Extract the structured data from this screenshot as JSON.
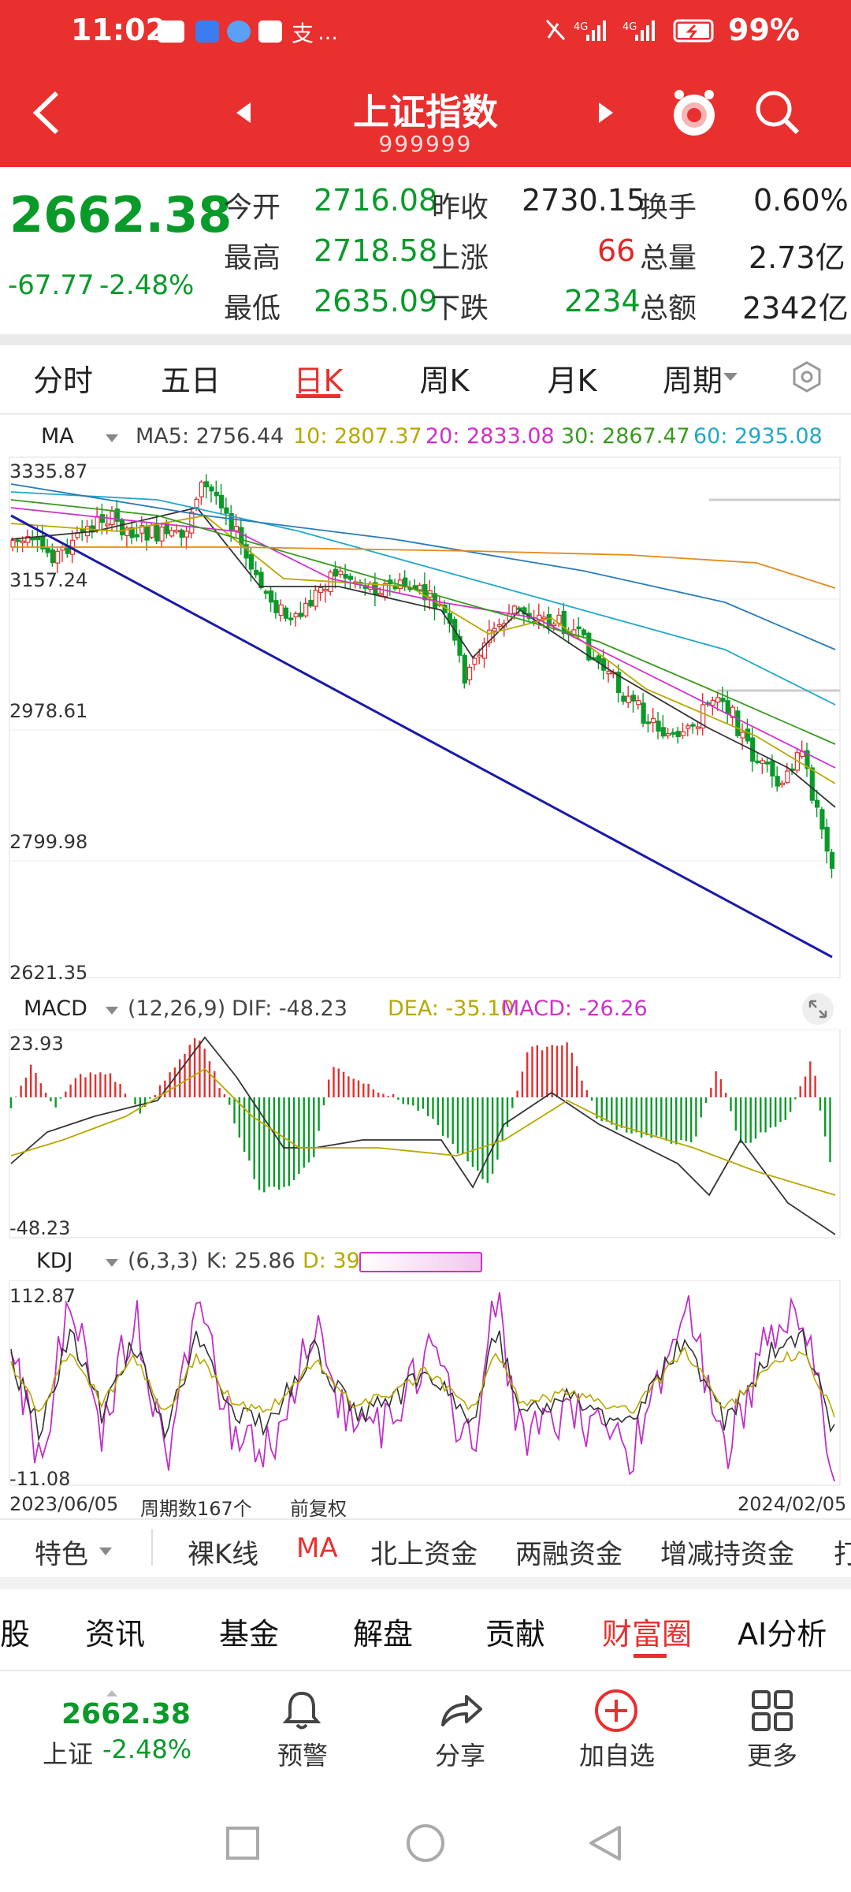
{
  "status": {
    "time": "11:02",
    "battery": "99%",
    "signal1": "4G",
    "signal2": "4G"
  },
  "header": {
    "title": "上证指数",
    "code": "999999"
  },
  "quote": {
    "price": "2662.38",
    "change": "-67.77",
    "change_pct": "-2.48%",
    "open_label": "今开",
    "open": "2716.08",
    "prev_label": "昨收",
    "prev": "2730.15",
    "turnover_label": "换手",
    "turnover": "0.60%",
    "high_label": "最高",
    "high": "2718.58",
    "up_label": "上涨",
    "up": "66",
    "volume_label": "总量",
    "volume": "2.73亿",
    "low_label": "最低",
    "low": "2635.09",
    "down_label": "下跌",
    "down": "2234",
    "amount_label": "总额",
    "amount": "2342亿"
  },
  "period_tabs": [
    "分时",
    "五日",
    "日K",
    "周K",
    "月K",
    "周期"
  ],
  "active_period": "日K",
  "ma_legend": {
    "label": "MA",
    "ma5": "MA5: 2756.44",
    "ma10": "10: 2807.37",
    "ma20": "20: 2833.08",
    "ma30": "30: 2867.47",
    "ma60": "60: 2935.08"
  },
  "macd_legend": {
    "label": "MACD",
    "params": "(12,26,9)",
    "dif": "DIF: -48.23",
    "dea": "DEA: -35.10",
    "macd": "MACD: -26.26"
  },
  "kdj_legend": {
    "label": "KDJ",
    "params": "(6,3,3)",
    "k": "K: 25.86",
    "d": "D: 39."
  },
  "axis": {
    "price_ticks": [
      "3335.87",
      "3157.24",
      "2978.61",
      "2799.98",
      "2621.35"
    ],
    "macd_top": "23.93",
    "macd_bottom": "-48.23",
    "kdj_top": "112.87",
    "kdj_bottom": "-11.08",
    "date_start": "2023/06/05",
    "period_count": "周期数167个",
    "adjust": "前复权",
    "date_end": "2024/02/05"
  },
  "feature_tabs": [
    "特色",
    "裸K线",
    "MA",
    "北上资金",
    "两融资金",
    "增减持资金",
    "打"
  ],
  "active_feature": "MA",
  "info_tabs": [
    "股",
    "资讯",
    "基金",
    "解盘",
    "贡献",
    "财富圈",
    "AI分析"
  ],
  "active_info": "财富圈",
  "bottom_bar": {
    "price": "2662.38",
    "name": "上证",
    "pct": "-2.48%",
    "alert": "预警",
    "share": "分享",
    "add": "加自选",
    "more": "更多"
  },
  "colors": {
    "brand_red": "#e8302f",
    "down_green": "#0a9a2a",
    "ma5": "#333333",
    "ma10": "#b8a800",
    "ma20": "#d030c8",
    "ma30": "#3a9a20",
    "ma60": "#20a8c8"
  },
  "chart_data": {
    "type": "candlestick",
    "series": [
      {
        "name": "MA5",
        "last": 2756.44
      },
      {
        "name": "10",
        "last": 2807.37
      },
      {
        "name": "20",
        "last": 2833.08
      },
      {
        "name": "30",
        "last": 2867.47
      },
      {
        "name": "60",
        "last": 2935.08
      }
    ],
    "ylim": [
      2621.35,
      3335.87
    ],
    "x_range": [
      "2023/06/05",
      "2024/02/05"
    ],
    "periods": 167,
    "last_close": 2662.38
  }
}
